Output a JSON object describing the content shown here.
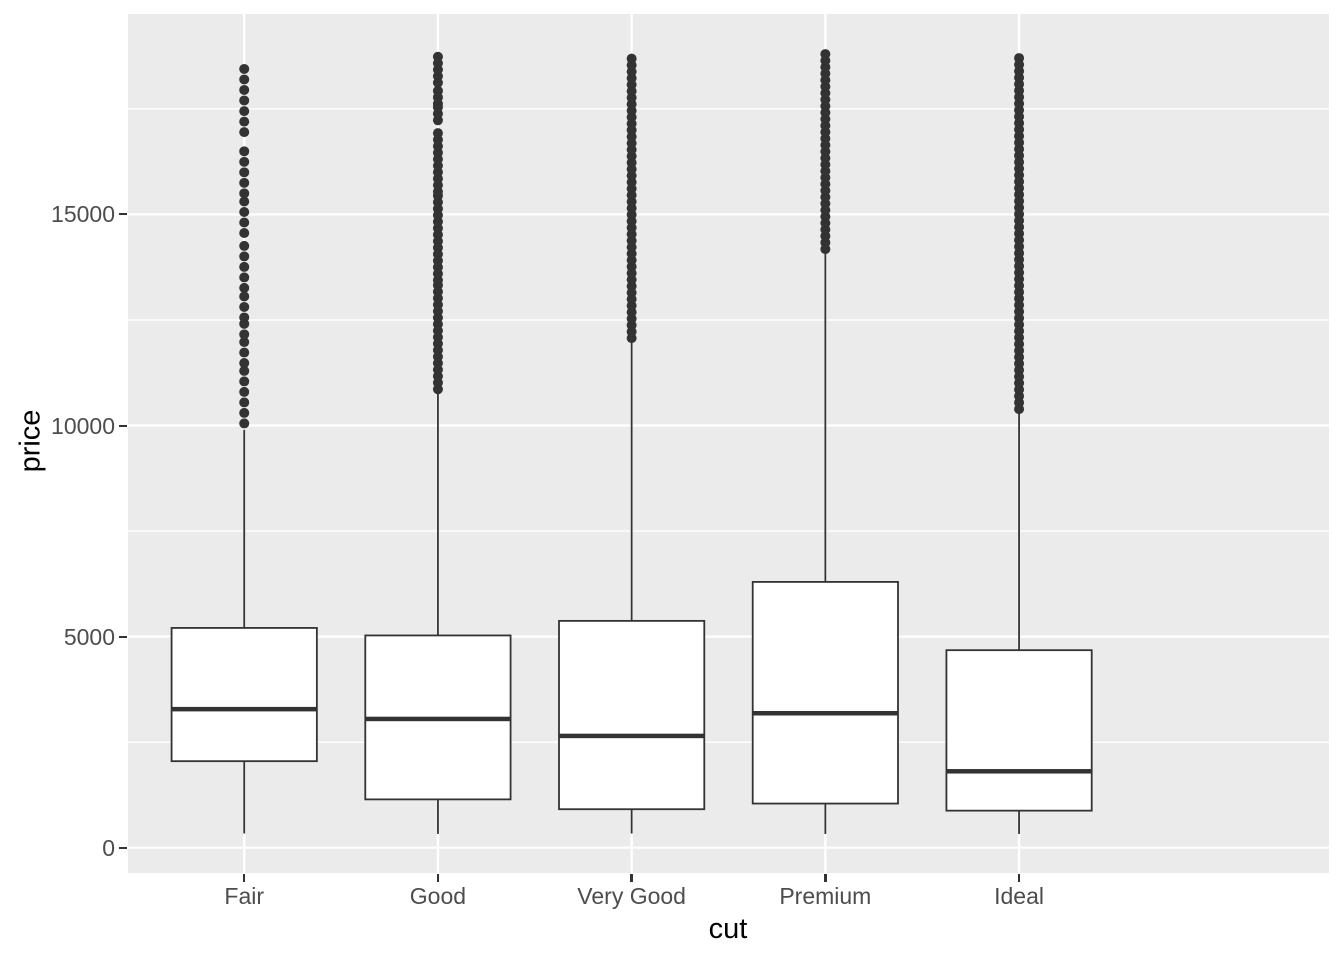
{
  "chart_data": {
    "type": "boxplot",
    "title": "",
    "xlabel": "cut",
    "ylabel": "price",
    "categories": [
      "Fair",
      "Good",
      "Very Good",
      "Premium",
      "Ideal"
    ],
    "y_axis": {
      "major_ticks": [
        0,
        5000,
        10000,
        15000
      ],
      "major_tick_labels": [
        "0",
        "5000",
        "10000",
        "15000"
      ],
      "minor_gridlines": [
        2500,
        7500,
        12500,
        17500
      ],
      "range": [
        -599,
        19748
      ]
    },
    "legend": "none",
    "grid": "white major and minor gridlines on grey panel",
    "colors": {
      "figure_background": "#FFFFFF",
      "panel_background": "#EBEBEB",
      "gridline": "#FFFFFF",
      "box_stroke": "#333333",
      "box_fill": "#FFFFFF",
      "outlier_dot": "#333333",
      "axis_text": "#4D4D4D",
      "axis_title": "#000000",
      "tick_mark": "#333333"
    },
    "series": [
      {
        "category": "Fair",
        "min": 337,
        "q1": 2050,
        "median": 3282,
        "q3": 5206,
        "whisker_high": 9900,
        "outlier_max": 18574,
        "outlier_bands": [
          [
            10050,
            11430
          ],
          [
            11480,
            12050
          ],
          [
            12160,
            12500
          ],
          [
            12560,
            13150
          ],
          [
            13260,
            14480
          ],
          [
            14560,
            15330
          ],
          [
            15500,
            16580
          ],
          [
            16950,
            17480
          ],
          [
            17700,
            18574
          ]
        ]
      },
      {
        "category": "Good",
        "min": 327,
        "q1": 1145,
        "median": 3050,
        "q3": 5028,
        "whisker_high": 10850,
        "outlier_max": 18788,
        "outlier_bands": [
          [
            10860,
            13370
          ],
          [
            13440,
            15470
          ],
          [
            15540,
            16930
          ],
          [
            17230,
            17560
          ],
          [
            17620,
            18050
          ],
          [
            18120,
            18788
          ]
        ]
      },
      {
        "category": "Very Good",
        "min": 336,
        "q1": 912,
        "median": 2648,
        "q3": 5373,
        "whisker_high": 12060,
        "outlier_max": 18818,
        "outlier_bands": [
          [
            12070,
            18818
          ]
        ]
      },
      {
        "category": "Premium",
        "min": 326,
        "q1": 1046,
        "median": 3185,
        "q3": 6296,
        "whisker_high": 14170,
        "outlier_max": 18823,
        "outlier_bands": [
          [
            14180,
            18823
          ]
        ]
      },
      {
        "category": "Ideal",
        "min": 326,
        "q1": 878,
        "median": 1810,
        "q3": 4679,
        "whisker_high": 10380,
        "outlier_max": 18806,
        "outlier_bands": [
          [
            10390,
            18806
          ]
        ]
      }
    ]
  }
}
